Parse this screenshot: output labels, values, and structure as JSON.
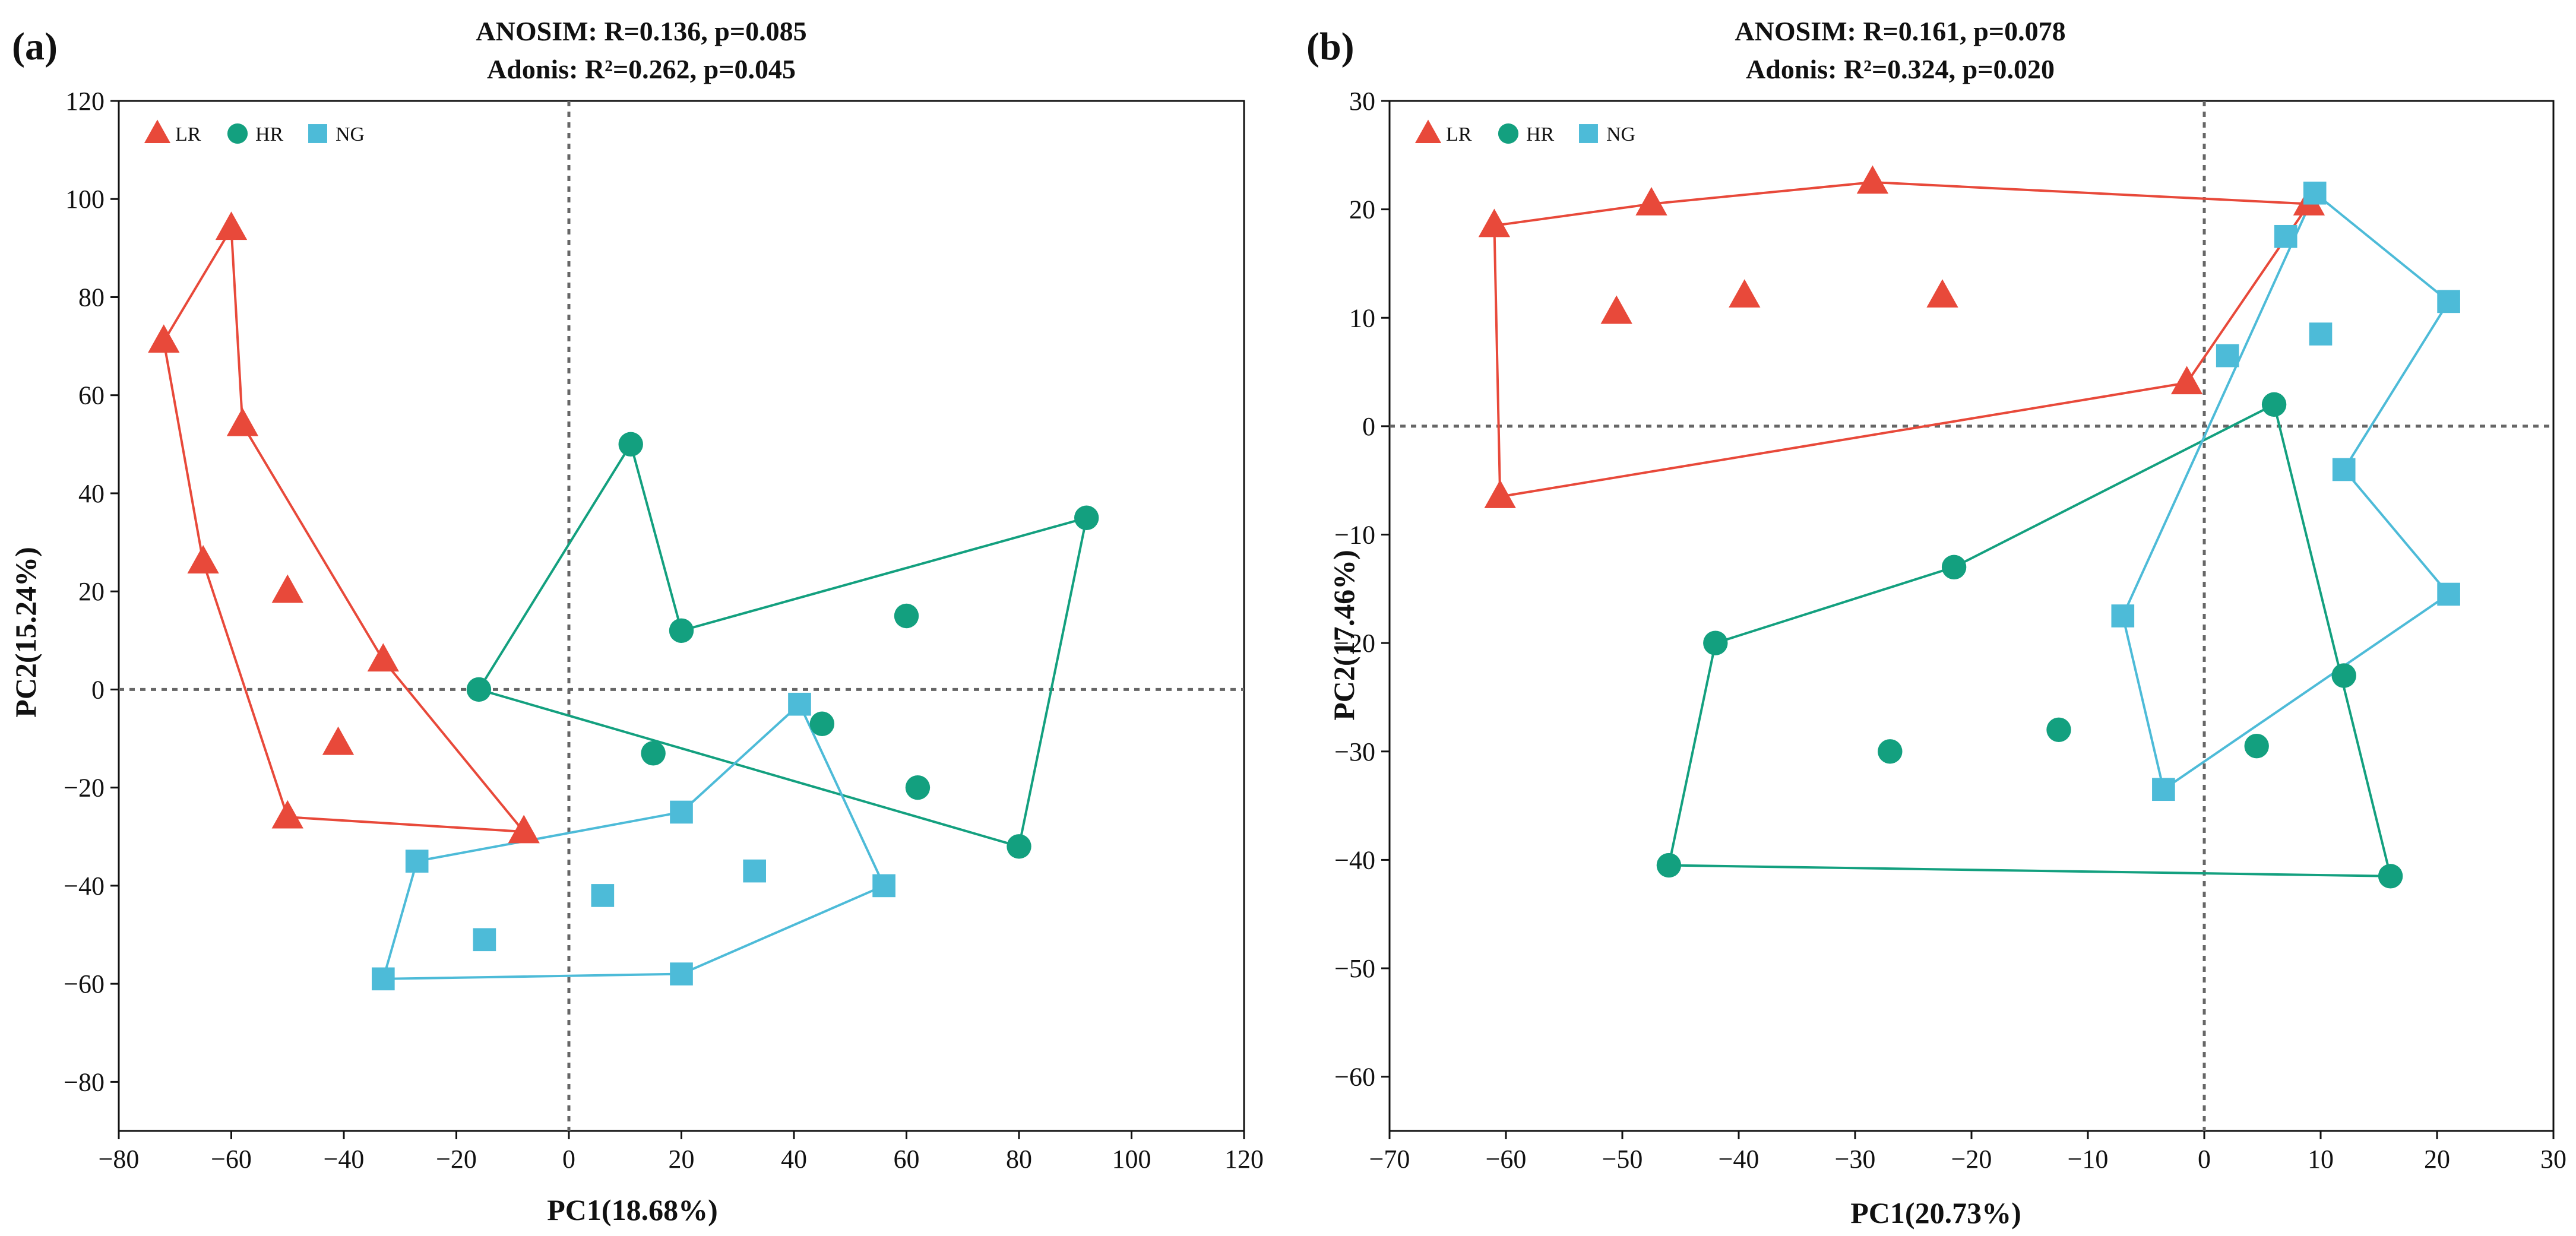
{
  "colors": {
    "LR": "#E8493A",
    "HR": "#13A07F",
    "NG": "#4DBBD8"
  },
  "chart_data": [
    {
      "type": "scatter",
      "panel_label": "(a)",
      "annotation_line1": "ANOSIM: R=0.136, p=0.085",
      "annotation_line2": "Adonis: R²=0.262, p=0.045",
      "xlabel": "PC1(18.68%)",
      "ylabel": "PC2(15.24%)",
      "xlim": [
        -80,
        120
      ],
      "ylim": [
        -90,
        120
      ],
      "xticks": [
        -80,
        -60,
        -40,
        -20,
        0,
        20,
        40,
        60,
        80,
        100,
        120
      ],
      "yticks": [
        -80,
        -60,
        -40,
        -20,
        0,
        20,
        40,
        60,
        80,
        100,
        120
      ],
      "reference_lines": {
        "x": 0,
        "y": 0
      },
      "legend": [
        "LR",
        "HR",
        "NG"
      ],
      "legend_position": "top-left",
      "series": [
        {
          "name": "LR",
          "marker": "triangle",
          "points": [
            [
              -60,
              94
            ],
            [
              -72,
              71
            ],
            [
              -58,
              54
            ],
            [
              -65,
              26
            ],
            [
              -50,
              20
            ],
            [
              -33,
              6
            ],
            [
              -41,
              -11
            ],
            [
              -50,
              -26
            ],
            [
              -8,
              -29
            ]
          ],
          "hull": [
            [
              -60,
              94
            ],
            [
              -58,
              54
            ],
            [
              -33,
              6
            ],
            [
              -8,
              -29
            ],
            [
              -50,
              -26
            ],
            [
              -65,
              26
            ],
            [
              -72,
              71
            ]
          ]
        },
        {
          "name": "HR",
          "marker": "circle",
          "points": [
            [
              11,
              50
            ],
            [
              92,
              35
            ],
            [
              20,
              12
            ],
            [
              60,
              15
            ],
            [
              -16,
              0
            ],
            [
              15,
              -13
            ],
            [
              45,
              -7
            ],
            [
              62,
              -20
            ],
            [
              80,
              -32
            ]
          ],
          "hull": [
            [
              -16,
              0
            ],
            [
              11,
              50
            ],
            [
              20,
              12
            ],
            [
              92,
              35
            ],
            [
              80,
              -32
            ]
          ]
        },
        {
          "name": "NG",
          "marker": "square",
          "points": [
            [
              41,
              -3
            ],
            [
              20,
              -25
            ],
            [
              -27,
              -35
            ],
            [
              33,
              -37
            ],
            [
              56,
              -40
            ],
            [
              6,
              -42
            ],
            [
              -15,
              -51
            ],
            [
              -33,
              -59
            ],
            [
              20,
              -58
            ]
          ],
          "hull": [
            [
              41,
              -3
            ],
            [
              56,
              -40
            ],
            [
              20,
              -58
            ],
            [
              -33,
              -59
            ],
            [
              -27,
              -35
            ],
            [
              20,
              -25
            ]
          ]
        }
      ]
    },
    {
      "type": "scatter",
      "panel_label": "(b)",
      "annotation_line1": "ANOSIM: R=0.161, p=0.078",
      "annotation_line2": "Adonis: R²=0.324, p=0.020",
      "xlabel": "PC1(20.73%)",
      "ylabel": "PC2(17.46%)",
      "xlim": [
        -70,
        30
      ],
      "ylim": [
        -65,
        30
      ],
      "xticks": [
        -70,
        -60,
        -50,
        -40,
        -30,
        -20,
        -10,
        0,
        10,
        20,
        30
      ],
      "yticks": [
        -60,
        -50,
        -40,
        -30,
        -20,
        -10,
        0,
        10,
        20,
        30
      ],
      "reference_lines": {
        "x": 0,
        "y": 0
      },
      "legend": [
        "LR",
        "HR",
        "NG"
      ],
      "legend_position": "top-left",
      "series": [
        {
          "name": "LR",
          "marker": "triangle",
          "points": [
            [
              -61,
              18.5
            ],
            [
              -47.5,
              20.5
            ],
            [
              -28.5,
              22.5
            ],
            [
              9,
              20.5
            ],
            [
              -50.5,
              10.5
            ],
            [
              -39.5,
              12
            ],
            [
              -22.5,
              12
            ],
            [
              -1.5,
              4
            ],
            [
              -60.5,
              -6.5
            ]
          ],
          "hull": [
            [
              -61,
              18.5
            ],
            [
              -47.5,
              20.5
            ],
            [
              -28.5,
              22.5
            ],
            [
              9,
              20.5
            ],
            [
              -1.5,
              4
            ],
            [
              -60.5,
              -6.5
            ]
          ]
        },
        {
          "name": "HR",
          "marker": "circle",
          "points": [
            [
              6,
              2
            ],
            [
              -21.5,
              -13
            ],
            [
              -42,
              -20
            ],
            [
              12,
              -23
            ],
            [
              -12.5,
              -28
            ],
            [
              -27,
              -30
            ],
            [
              4.5,
              -29.5
            ],
            [
              -46,
              -40.5
            ],
            [
              16,
              -41.5
            ]
          ],
          "hull": [
            [
              6,
              2
            ],
            [
              16,
              -41.5
            ],
            [
              -46,
              -40.5
            ],
            [
              -42,
              -20
            ],
            [
              -21.5,
              -13
            ]
          ]
        },
        {
          "name": "NG",
          "marker": "square",
          "points": [
            [
              9.5,
              21.5
            ],
            [
              7,
              17.5
            ],
            [
              21,
              11.5
            ],
            [
              10,
              8.5
            ],
            [
              2,
              6.5
            ],
            [
              12,
              -4
            ],
            [
              21,
              -15.5
            ],
            [
              -7,
              -17.5
            ],
            [
              -3.5,
              -33.5
            ]
          ],
          "hull": [
            [
              9.5,
              21.5
            ],
            [
              21,
              11.5
            ],
            [
              12,
              -4
            ],
            [
              21,
              -15.5
            ],
            [
              -3.5,
              -33.5
            ],
            [
              -7,
              -17.5
            ]
          ]
        }
      ]
    }
  ]
}
